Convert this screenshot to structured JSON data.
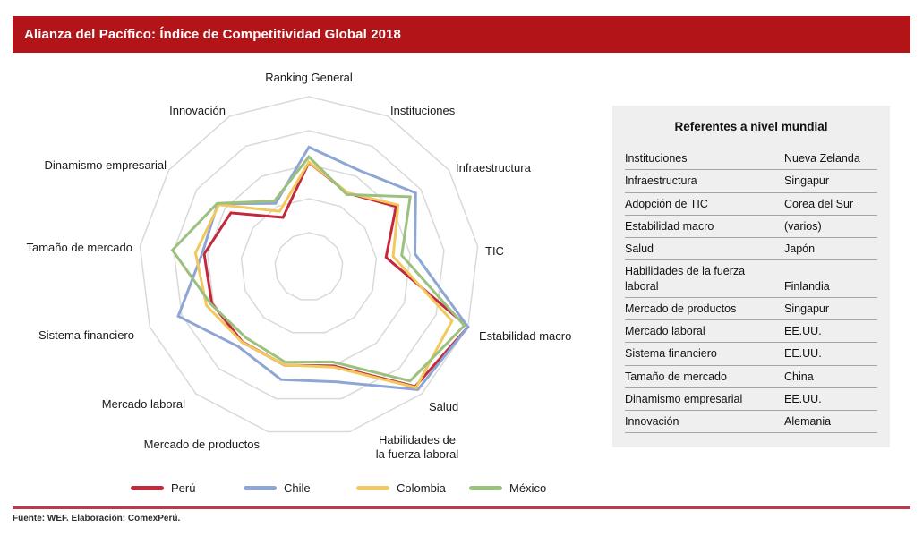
{
  "title": "Alianza del Pacífico: Índice de Competitividad Global 2018",
  "colors": {
    "title_bar": "#B31418",
    "footer_line": "#BC3A4A",
    "grid": "#D9D9D9",
    "table_bg": "#EFEFEF"
  },
  "chart_data": {
    "type": "radar",
    "scale": {
      "min": 0,
      "max": 100,
      "rings": 5,
      "grid": "on"
    },
    "legend_position": "bottom",
    "axes": [
      {
        "label": "Ranking General",
        "lines": [
          "Ranking General"
        ]
      },
      {
        "label": "Instituciones",
        "lines": [
          "Instituciones"
        ]
      },
      {
        "label": "Infraestructura",
        "lines": [
          "Infraestructura"
        ]
      },
      {
        "label": "TIC",
        "lines": [
          "TIC"
        ]
      },
      {
        "label": "Estabilidad macro",
        "lines": [
          "Estabilidad macro"
        ]
      },
      {
        "label": "Salud",
        "lines": [
          "Salud"
        ]
      },
      {
        "label": "Habilidades de la fuerza laboral",
        "lines": [
          "Habilidades de",
          "la fuerza laboral"
        ]
      },
      {
        "label": "Mercado de productos",
        "lines": [
          "Mercado de productos"
        ]
      },
      {
        "label": "Mercado laboral",
        "lines": [
          "Mercado laboral"
        ]
      },
      {
        "label": "Sistema financiero",
        "lines": [
          "Sistema financiero"
        ]
      },
      {
        "label": "Tamaño de mercado",
        "lines": [
          "Tamaño de mercado"
        ]
      },
      {
        "label": "Dinamismo empresarial",
        "lines": [
          "Dinamismo empresarial"
        ]
      },
      {
        "label": "Innovación",
        "lines": [
          "Innovación"
        ]
      }
    ],
    "series": [
      {
        "name": "Perú",
        "color": "#C2293C",
        "values": [
          61.3,
          48.9,
          62.3,
          45.7,
          100.0,
          94.2,
          60.1,
          59.7,
          59.0,
          61.0,
          62.0,
          55.7,
          32.7
        ]
      },
      {
        "name": "Chile",
        "color": "#8EA6D4",
        "values": [
          70.3,
          63.9,
          76.3,
          62.8,
          100.0,
          96.6,
          69.8,
          68.4,
          62.7,
          82.1,
          63.2,
          65.1,
          42.0
        ]
      },
      {
        "name": "Colombia",
        "color": "#F1C95F",
        "values": [
          61.6,
          49.1,
          63.8,
          49.9,
          90.0,
          95.0,
          60.8,
          59.6,
          59.3,
          64.4,
          67.1,
          64.2,
          36.8
        ]
      },
      {
        "name": "México",
        "color": "#9CC17E",
        "values": [
          64.6,
          47.9,
          72.4,
          55.0,
          97.7,
          89.8,
          57.7,
          57.9,
          55.8,
          61.7,
          80.8,
          65.5,
          43.6
        ]
      }
    ]
  },
  "table": {
    "title": "Referentes a nivel mundial",
    "rows": [
      {
        "label": "Instituciones",
        "value": "Nueva Zelanda"
      },
      {
        "label": "Infraestructura",
        "value": "Singapur"
      },
      {
        "label": "Adopción de TIC",
        "value": "Corea del Sur"
      },
      {
        "label": "Estabilidad macro",
        "value": "(varios)"
      },
      {
        "label": "Salud",
        "value": "Japón"
      },
      {
        "label": "Habilidades de la fuerza laboral",
        "value": "Finlandia"
      },
      {
        "label": "Mercado de productos",
        "value": "Singapur"
      },
      {
        "label": "Mercado laboral",
        "value": "EE.UU."
      },
      {
        "label": "Sistema financiero",
        "value": "EE.UU."
      },
      {
        "label": "Tamaño de mercado",
        "value": "China"
      },
      {
        "label": "Dinamismo empresarial",
        "value": "EE.UU."
      },
      {
        "label": "Innovación",
        "value": "Alemania"
      }
    ]
  },
  "footer": {
    "source": "Fuente: WEF. Elaboración: ComexPerú."
  }
}
